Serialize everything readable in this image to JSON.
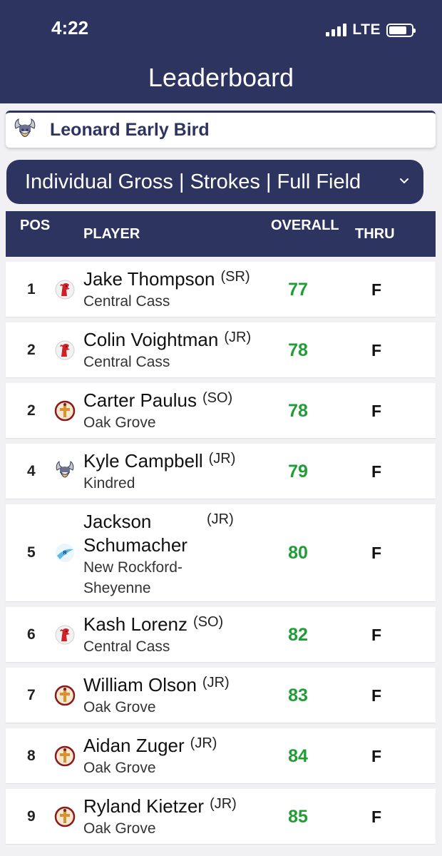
{
  "status": {
    "time": "4:22",
    "network": "LTE"
  },
  "header": {
    "title": "Leaderboard"
  },
  "event": {
    "name": "Leonard Early Bird",
    "logo_icon": "viking-logo-icon"
  },
  "filter": {
    "label": "Individual Gross | Strokes | Full Field",
    "icon": "chevron-down-icon"
  },
  "table": {
    "columns": {
      "pos": "POS",
      "player": "PLAYER",
      "overall": "OVERALL",
      "thru": "THRU"
    },
    "rows": [
      {
        "pos": "1",
        "name": "Jake Thompson",
        "grade": "(SR)",
        "team": "Central Cass",
        "score": "77",
        "thru": "F",
        "logo": "central-cass-logo-icon"
      },
      {
        "pos": "2",
        "name": "Colin Voightman",
        "grade": "(JR)",
        "team": "Central Cass",
        "score": "78",
        "thru": "F",
        "logo": "central-cass-logo-icon"
      },
      {
        "pos": "2",
        "name": "Carter Paulus",
        "grade": "(SO)",
        "team": "Oak Grove",
        "score": "78",
        "thru": "F",
        "logo": "oak-grove-logo-icon"
      },
      {
        "pos": "4",
        "name": "Kyle Campbell",
        "grade": "(JR)",
        "team": "Kindred",
        "score": "79",
        "thru": "F",
        "logo": "kindred-logo-icon"
      },
      {
        "pos": "5",
        "name": "Jackson Schumacher",
        "grade": "(JR)",
        "team": "New Rockford-Sheyenne",
        "score": "80",
        "thru": "F",
        "logo": "new-rockford-logo-icon"
      },
      {
        "pos": "6",
        "name": "Kash Lorenz",
        "grade": "(SO)",
        "team": "Central Cass",
        "score": "82",
        "thru": "F",
        "logo": "central-cass-logo-icon"
      },
      {
        "pos": "7",
        "name": "William Olson",
        "grade": "(JR)",
        "team": "Oak Grove",
        "score": "83",
        "thru": "F",
        "logo": "oak-grove-logo-icon"
      },
      {
        "pos": "8",
        "name": "Aidan Zuger",
        "grade": "(JR)",
        "team": "Oak Grove",
        "score": "84",
        "thru": "F",
        "logo": "oak-grove-logo-icon"
      },
      {
        "pos": "9",
        "name": "Ryland Kietzer",
        "grade": "(JR)",
        "team": "Oak Grove",
        "score": "85",
        "thru": "F",
        "logo": "oak-grove-logo-icon"
      }
    ]
  },
  "colors": {
    "navy": "#2e3460",
    "score_green": "#1f9e35"
  }
}
